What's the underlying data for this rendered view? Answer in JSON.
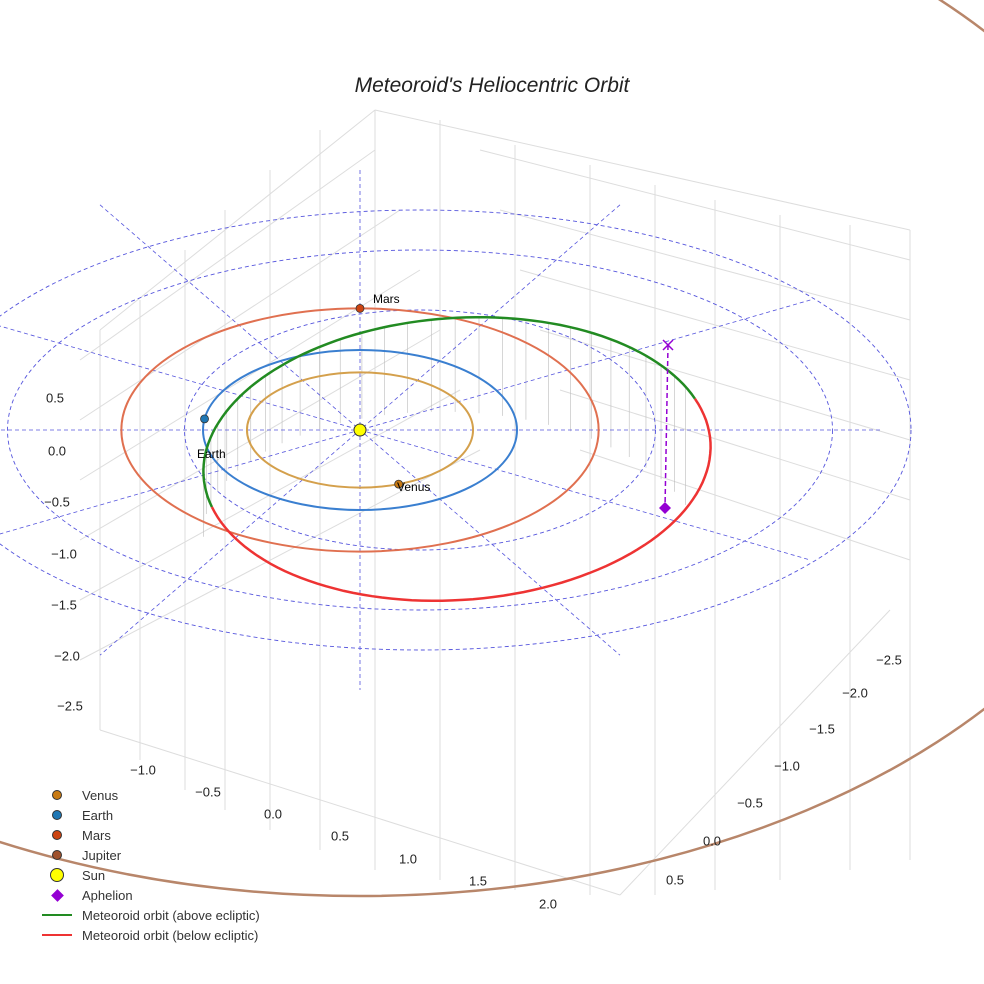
{
  "chart_data": {
    "type": "3d-orbit",
    "title": "Meteoroid's Heliocentric Orbit",
    "planets": [
      {
        "name": "Venus",
        "a_au": 0.72,
        "color": "#d4a04c",
        "marker_color": "#c87a14",
        "pos_angle_deg": -70
      },
      {
        "name": "Earth",
        "a_au": 1.0,
        "color": "#3a7fd0",
        "marker_color": "#1f77b4",
        "pos_angle_deg": 172
      },
      {
        "name": "Mars",
        "a_au": 1.52,
        "color": "#e07050",
        "marker_color": "#cc4411",
        "pos_angle_deg": 90
      },
      {
        "name": "Jupiter",
        "a_au": 5.2,
        "color": "#b8866a",
        "marker_color": "#a0522d"
      }
    ],
    "meteoroid": {
      "above_color": "#228B22",
      "below_color": "#ee3333"
    },
    "sun_color": "#ffff00",
    "aphelion_color": "#9400d3",
    "reference_circles_au": [
      1.5,
      2.5,
      3.0
    ],
    "x_ticks": [
      "−1.0",
      "−0.5",
      "0.0",
      "0.5",
      "1.0",
      "1.5",
      "2.0"
    ],
    "y_ticks": [
      "−2.5",
      "−2.0",
      "−1.5",
      "−1.0",
      "−0.5",
      "0.0",
      "0.5"
    ],
    "z_ticks": [
      "0.5",
      "0.0",
      "−0.5",
      "−1.0",
      "−1.5",
      "−2.0",
      "−2.5"
    ],
    "legend": {
      "position": "bottom-left",
      "items": [
        "Venus",
        "Earth",
        "Mars",
        "Jupiter",
        "Sun",
        "Aphelion",
        "Meteoroid orbit (above ecliptic)",
        "Meteoroid orbit (below ecliptic)"
      ]
    }
  }
}
